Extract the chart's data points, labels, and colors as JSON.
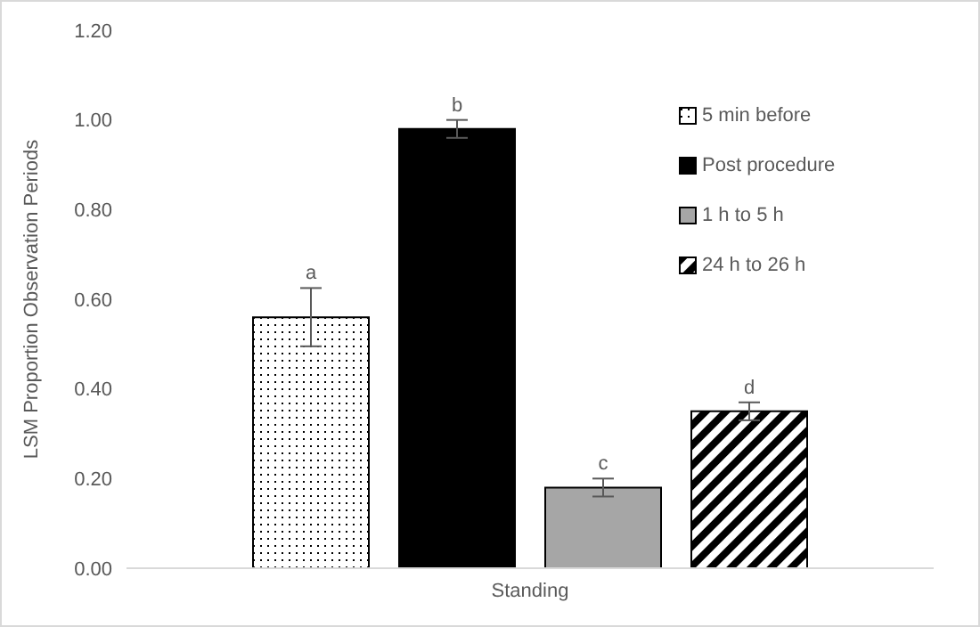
{
  "chart_data": {
    "type": "bar",
    "ylabel": "LSM Proportion Observation Periods",
    "categories": [
      "Standing"
    ],
    "series": [
      {
        "name": "5 min before",
        "color": "#000000",
        "values": [
          0.56
        ],
        "errors": [
          0.065
        ]
      },
      {
        "name": "Post procedure",
        "color": "#000000",
        "values": [
          0.98
        ],
        "errors": [
          0.02
        ]
      },
      {
        "name": "1 h to 5 h",
        "color": "#a6a6a6",
        "values": [
          0.18
        ],
        "errors": [
          0.02
        ]
      },
      {
        "name": "24 h to 26 h",
        "color": "#000000",
        "values": [
          0.35
        ],
        "errors": [
          0.02
        ]
      }
    ],
    "annotations": [
      "a",
      "b",
      "c",
      "d"
    ],
    "ylim": [
      0,
      1.2
    ],
    "yticks": [
      {
        "value": 0,
        "label": "0.00"
      },
      {
        "value": 0.2,
        "label": "0.20"
      },
      {
        "value": 0.4,
        "label": "0.40"
      },
      {
        "value": 0.6,
        "label": "0.60"
      },
      {
        "value": 0.8,
        "label": "0.80"
      },
      {
        "value": 1,
        "label": "1.00"
      },
      {
        "value": 1.2,
        "label": "1.20"
      }
    ],
    "grid": false,
    "legend": "top right"
  }
}
